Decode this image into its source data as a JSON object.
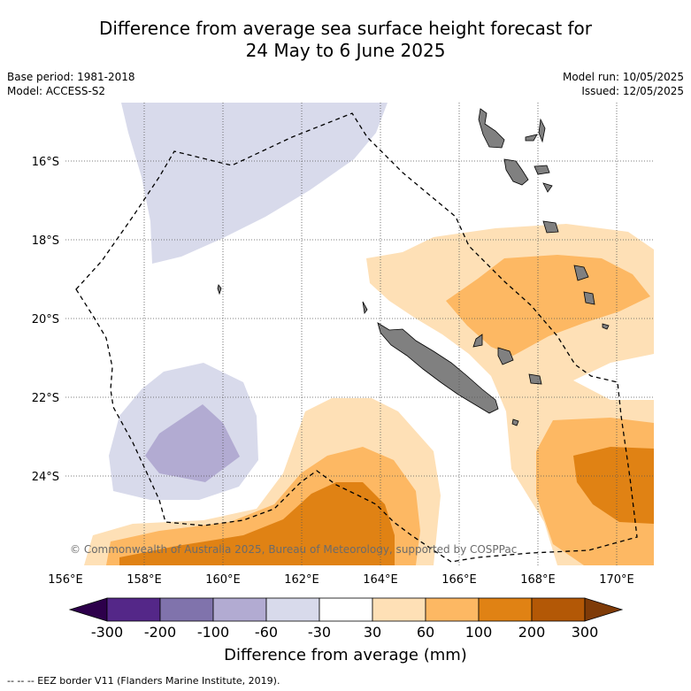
{
  "header": {
    "title_line1": "Difference from average sea surface height forecast for",
    "title_line2": "24 May to 6 June 2025",
    "base_period": "Base period: 1981-2018",
    "model": "Model: ACCESS-S2",
    "model_run": "Model run: 10/05/2025",
    "issued": "Issued: 12/05/2025"
  },
  "map": {
    "lon_labels": [
      "156°E",
      "158°E",
      "160°E",
      "162°E",
      "164°E",
      "166°E",
      "168°E",
      "170°E"
    ],
    "lat_labels": [
      "16°S",
      "18°S",
      "20°S",
      "22°S",
      "24°S"
    ],
    "copyright": "© Commonwealth of Australia 2025, Bureau of Meteorology, supported by COSPPac"
  },
  "colorbar": {
    "labels": [
      "-300",
      "-200",
      "-100",
      "-60",
      "-30",
      "30",
      "60",
      "100",
      "200",
      "300"
    ],
    "colors": [
      "#542788",
      "#8073ac",
      "#b2abd2",
      "#d8daeb",
      "#ffffff",
      "#fee0b6",
      "#fdb863",
      "#e08214",
      "#b35806"
    ],
    "end_low": "#2d004b",
    "end_high": "#7f3b08",
    "title": "Difference from average (mm)"
  },
  "footer": {
    "legend": "-- -- -- EEZ border V11 (Flanders Marine Institute, 2019)."
  }
}
